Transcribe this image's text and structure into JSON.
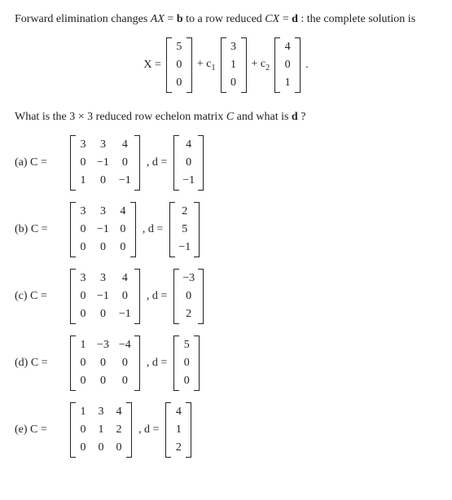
{
  "intro_parts": {
    "p1": "Forward elimination changes ",
    "AX": "AX",
    "eq1": " = ",
    "b": "b",
    "p2": " to a row reduced ",
    "CX": "CX",
    "eq2": " = ",
    "d": "d",
    "p3": " : the complete solution is"
  },
  "solution_eq": {
    "lhs": "X =",
    "v1": [
      "5",
      "0",
      "0"
    ],
    "plus1": "+ c",
    "c1sub": "1",
    "v2": [
      "3",
      "1",
      "0"
    ],
    "plus2": "+ c",
    "c2sub": "2",
    "v3": [
      "4",
      "0",
      "1"
    ],
    "dot": "."
  },
  "prompt2_parts": {
    "p1": "What is the 3 × 3 reduced row echelon matrix ",
    "C": "C",
    "p2": " and what is ",
    "d": "d",
    "p3": " ?"
  },
  "choices": [
    {
      "label": "(a) C =",
      "C": [
        [
          "3",
          "3",
          "4"
        ],
        [
          "0",
          "−1",
          "0"
        ],
        [
          "1",
          "0",
          "−1"
        ]
      ],
      "mid": ", d =",
      "d": [
        "4",
        "0",
        "−1"
      ]
    },
    {
      "label": "(b) C =",
      "C": [
        [
          "3",
          "3",
          "4"
        ],
        [
          "0",
          "−1",
          "0"
        ],
        [
          "0",
          "0",
          "0"
        ]
      ],
      "mid": ", d =",
      "d": [
        "2",
        "5",
        "−1"
      ]
    },
    {
      "label": "(c) C =",
      "C": [
        [
          "3",
          "3",
          "4"
        ],
        [
          "0",
          "−1",
          "0"
        ],
        [
          "0",
          "0",
          "−1"
        ]
      ],
      "mid": ", d =",
      "d": [
        "−3",
        "0",
        "2"
      ]
    },
    {
      "label": "(d) C =",
      "C": [
        [
          "1",
          "−3",
          "−4"
        ],
        [
          "0",
          "0",
          "0"
        ],
        [
          "0",
          "0",
          "0"
        ]
      ],
      "mid": ", d =",
      "d": [
        "5",
        "0",
        "0"
      ]
    },
    {
      "label": "(e) C =",
      "C": [
        [
          "1",
          "3",
          "4"
        ],
        [
          "0",
          "1",
          "2"
        ],
        [
          "0",
          "0",
          "0"
        ]
      ],
      "mid": ", d =",
      "d": [
        "4",
        "1",
        "2"
      ]
    }
  ]
}
